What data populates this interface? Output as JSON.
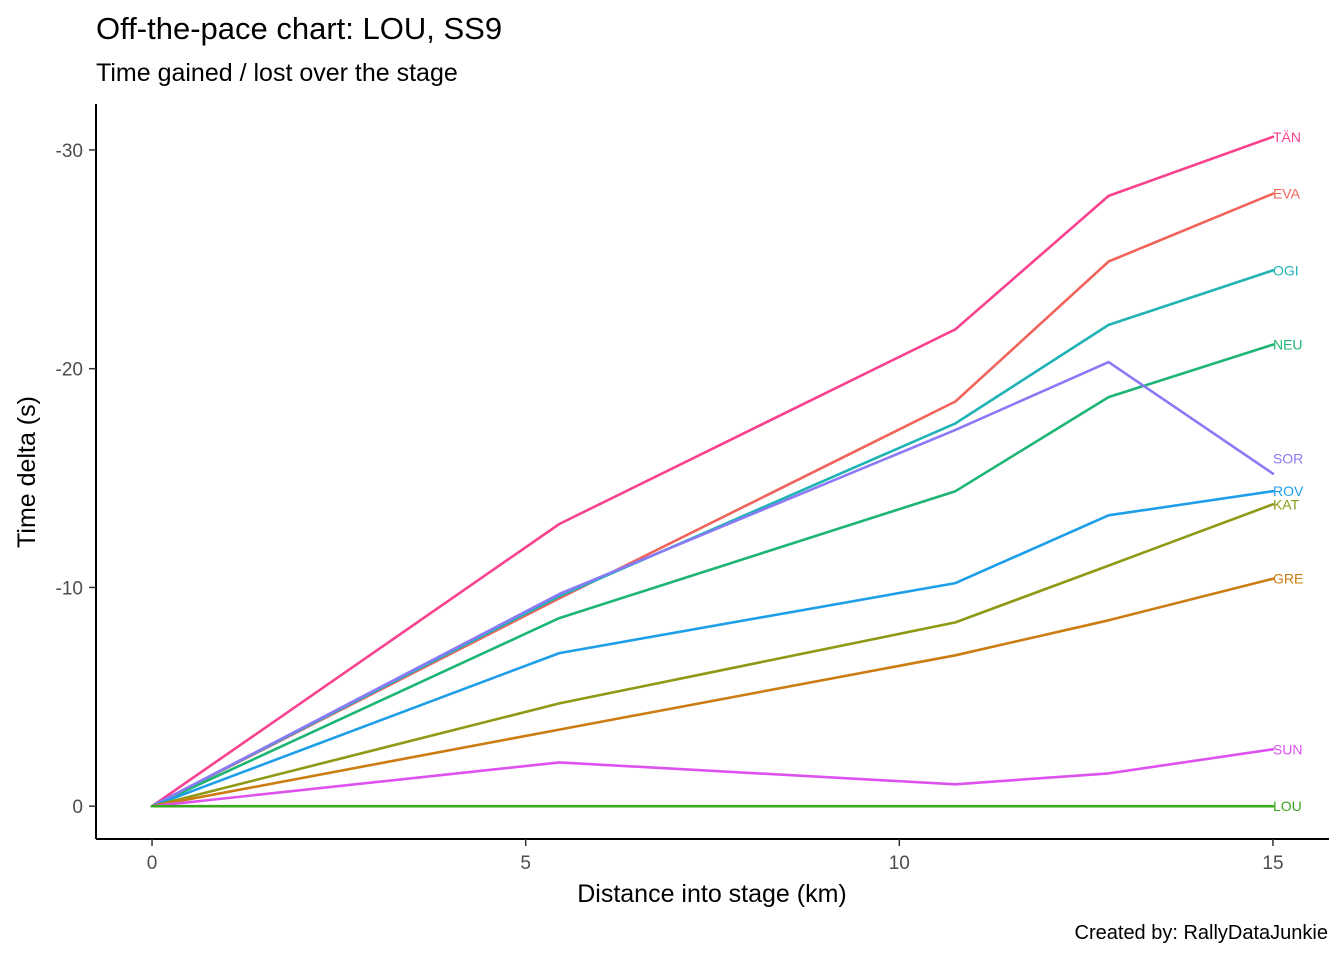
{
  "chart_data": {
    "type": "line",
    "title": "Off-the-pace chart: LOU, SS9",
    "subtitle": "Time gained / lost over the stage",
    "caption": "Created by: RallyDataJunkie",
    "xlabel": "Distance into stage (km)",
    "ylabel": "Time delta (s)",
    "xlim": [
      -0.75,
      15.75
    ],
    "ylim": [
      1.5,
      -32.1
    ],
    "y_reversed": true,
    "x_ticks": [
      0,
      5,
      10,
      15
    ],
    "x_tick_labels": [
      "0",
      "5",
      "10",
      "15"
    ],
    "y_ticks": [
      0,
      -10,
      -20,
      -30
    ],
    "y_tick_labels": [
      "0",
      "-10",
      "-20",
      "-30"
    ],
    "grid": false,
    "legend": "none (series labels at line ends)",
    "x": [
      0,
      5.45,
      10.75,
      12.8,
      15
    ],
    "series": [
      {
        "name": "TÄN",
        "color": "#F8428F",
        "values": [
          0,
          -12.9,
          -21.8,
          -27.9,
          -30.6
        ]
      },
      {
        "name": "EVA",
        "color": "#F0645C",
        "values": [
          0,
          -9.5,
          -18.5,
          -24.9,
          -28.0
        ]
      },
      {
        "name": "OGI",
        "color": "#1FB3B5",
        "values": [
          0,
          -9.6,
          -17.5,
          -22.0,
          -24.5
        ]
      },
      {
        "name": "NEU",
        "color": "#1DB574",
        "values": [
          0,
          -8.6,
          -14.4,
          -18.7,
          -21.1
        ]
      },
      {
        "name": "SOR",
        "color": "#8B79F5",
        "values": [
          0,
          -9.7,
          -17.2,
          -20.3,
          -15.2
        ]
      },
      {
        "name": "ROV",
        "color": "#1E9EE8",
        "values": [
          0,
          -7.0,
          -10.2,
          -13.3,
          -14.4
        ]
      },
      {
        "name": "KAT",
        "color": "#8E9A15",
        "values": [
          0,
          -4.7,
          -8.4,
          -11.0,
          -13.8
        ]
      },
      {
        "name": "GRE",
        "color": "#CC7D12",
        "values": [
          0,
          -3.5,
          -6.9,
          -8.5,
          -10.4
        ]
      },
      {
        "name": "SUN",
        "color": "#DD52EF",
        "values": [
          0,
          -2.0,
          -1.0,
          -1.5,
          -2.6
        ]
      },
      {
        "name": "LOU",
        "color": "#3AA81C",
        "values": [
          0,
          0,
          0,
          0,
          0
        ]
      }
    ]
  }
}
